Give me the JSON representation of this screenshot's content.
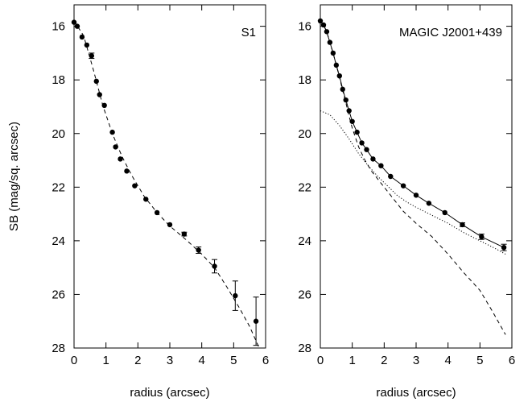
{
  "chart_data": [
    {
      "type": "scatter",
      "title": "S1",
      "xlabel": "radius (arcsec)",
      "ylabel": "SB (mag/sq. arcsec)",
      "xlim": [
        0,
        6
      ],
      "ylim": [
        28,
        15.2
      ],
      "y_inverted": true,
      "xticks": [
        0,
        1,
        2,
        3,
        4,
        5,
        6
      ],
      "yticks": [
        16,
        18,
        20,
        22,
        24,
        26,
        28
      ],
      "grid": false,
      "series": [
        {
          "style": "points-with-errorbars",
          "x": [
            0.0,
            0.1,
            0.25,
            0.4,
            0.55,
            0.7,
            0.8,
            0.95,
            1.2,
            1.3,
            1.45,
            1.65,
            1.9,
            2.25,
            2.6,
            3.0,
            3.45,
            3.9,
            4.4,
            5.05,
            5.7
          ],
          "y": [
            15.85,
            16.0,
            16.4,
            16.7,
            17.1,
            18.05,
            18.55,
            18.95,
            19.95,
            20.5,
            20.95,
            21.4,
            21.95,
            22.45,
            22.95,
            23.4,
            23.75,
            24.35,
            24.95,
            26.05,
            27.0
          ],
          "yerr": [
            0.05,
            0.05,
            0.05,
            0.05,
            0.1,
            0.05,
            0.05,
            0.05,
            0.05,
            0.05,
            0.05,
            0.05,
            0.05,
            0.05,
            0.05,
            0.05,
            0.07,
            0.12,
            0.25,
            0.55,
            0.9
          ]
        },
        {
          "style": "dashed-line",
          "x": [
            0.0,
            0.3,
            0.6,
            0.9,
            1.2,
            1.5,
            1.8,
            2.2,
            2.6,
            3.0,
            3.5,
            4.0,
            4.4,
            4.8,
            5.2,
            5.5,
            5.8
          ],
          "y": [
            15.8,
            16.35,
            17.6,
            18.95,
            20.0,
            20.85,
            21.55,
            22.35,
            22.95,
            23.45,
            23.95,
            24.5,
            25.0,
            25.75,
            26.55,
            27.2,
            28.0
          ]
        }
      ]
    },
    {
      "type": "line",
      "title": "MAGIC J2001+439",
      "xlabel": "radius (arcsec)",
      "ylabel": "",
      "xlim": [
        0,
        6
      ],
      "ylim": [
        28,
        15.2
      ],
      "y_inverted": true,
      "xticks": [
        0,
        1,
        2,
        3,
        4,
        5,
        6
      ],
      "yticks": [
        16,
        18,
        20,
        22,
        24,
        26,
        28
      ],
      "grid": false,
      "series": [
        {
          "style": "points-with-errorbars",
          "x": [
            0.0,
            0.1,
            0.2,
            0.3,
            0.4,
            0.5,
            0.6,
            0.7,
            0.8,
            0.9,
            1.0,
            1.15,
            1.3,
            1.45,
            1.65,
            1.9,
            2.2,
            2.6,
            3.0,
            3.4,
            3.9,
            4.45,
            5.05,
            5.75
          ],
          "y": [
            15.8,
            15.95,
            16.2,
            16.6,
            17.0,
            17.45,
            17.85,
            18.35,
            18.75,
            19.15,
            19.55,
            19.95,
            20.35,
            20.6,
            20.95,
            21.2,
            21.6,
            21.95,
            22.3,
            22.6,
            22.95,
            23.4,
            23.85,
            24.25
          ],
          "yerr": [
            0.05,
            0.05,
            0.05,
            0.05,
            0.05,
            0.05,
            0.05,
            0.05,
            0.05,
            0.05,
            0.05,
            0.05,
            0.05,
            0.05,
            0.05,
            0.05,
            0.05,
            0.05,
            0.05,
            0.05,
            0.05,
            0.07,
            0.1,
            0.12
          ]
        },
        {
          "style": "solid-line",
          "x": [
            0.0,
            0.1,
            0.2,
            0.3,
            0.4,
            0.5,
            0.6,
            0.7,
            0.8,
            0.9,
            1.0,
            1.15,
            1.3,
            1.45,
            1.65,
            1.9,
            2.2,
            2.6,
            3.0,
            3.4,
            3.9,
            4.45,
            5.05,
            5.75
          ],
          "y": [
            15.8,
            15.95,
            16.2,
            16.6,
            17.0,
            17.45,
            17.85,
            18.35,
            18.75,
            19.15,
            19.55,
            19.95,
            20.35,
            20.6,
            20.95,
            21.2,
            21.6,
            21.95,
            22.3,
            22.6,
            22.95,
            23.4,
            23.85,
            24.25
          ]
        },
        {
          "style": "dashed-line",
          "x": [
            0.0,
            0.1,
            0.2,
            0.3,
            0.4,
            0.5,
            0.6,
            0.7,
            0.8,
            0.9,
            1.0,
            1.2,
            1.4,
            1.6,
            1.8,
            2.0,
            2.3,
            2.6,
            3.0,
            3.5,
            4.0,
            4.5,
            5.0,
            5.4,
            5.8
          ],
          "y": [
            15.8,
            15.95,
            16.2,
            16.6,
            17.0,
            17.45,
            17.9,
            18.4,
            18.85,
            19.35,
            19.8,
            20.5,
            21.0,
            21.4,
            21.7,
            22.0,
            22.45,
            22.9,
            23.35,
            23.85,
            24.5,
            25.2,
            25.85,
            26.65,
            27.5
          ]
        },
        {
          "style": "dotted-line",
          "x": [
            0.0,
            0.3,
            0.6,
            0.9,
            1.2,
            1.5,
            1.8,
            2.1,
            2.4,
            2.7,
            3.0,
            3.5,
            4.0,
            4.5,
            5.0,
            5.5,
            5.8
          ],
          "y": [
            19.15,
            19.3,
            19.7,
            20.2,
            20.75,
            21.2,
            21.6,
            21.95,
            22.3,
            22.55,
            22.75,
            23.05,
            23.35,
            23.7,
            24.0,
            24.3,
            24.5
          ]
        }
      ]
    }
  ]
}
